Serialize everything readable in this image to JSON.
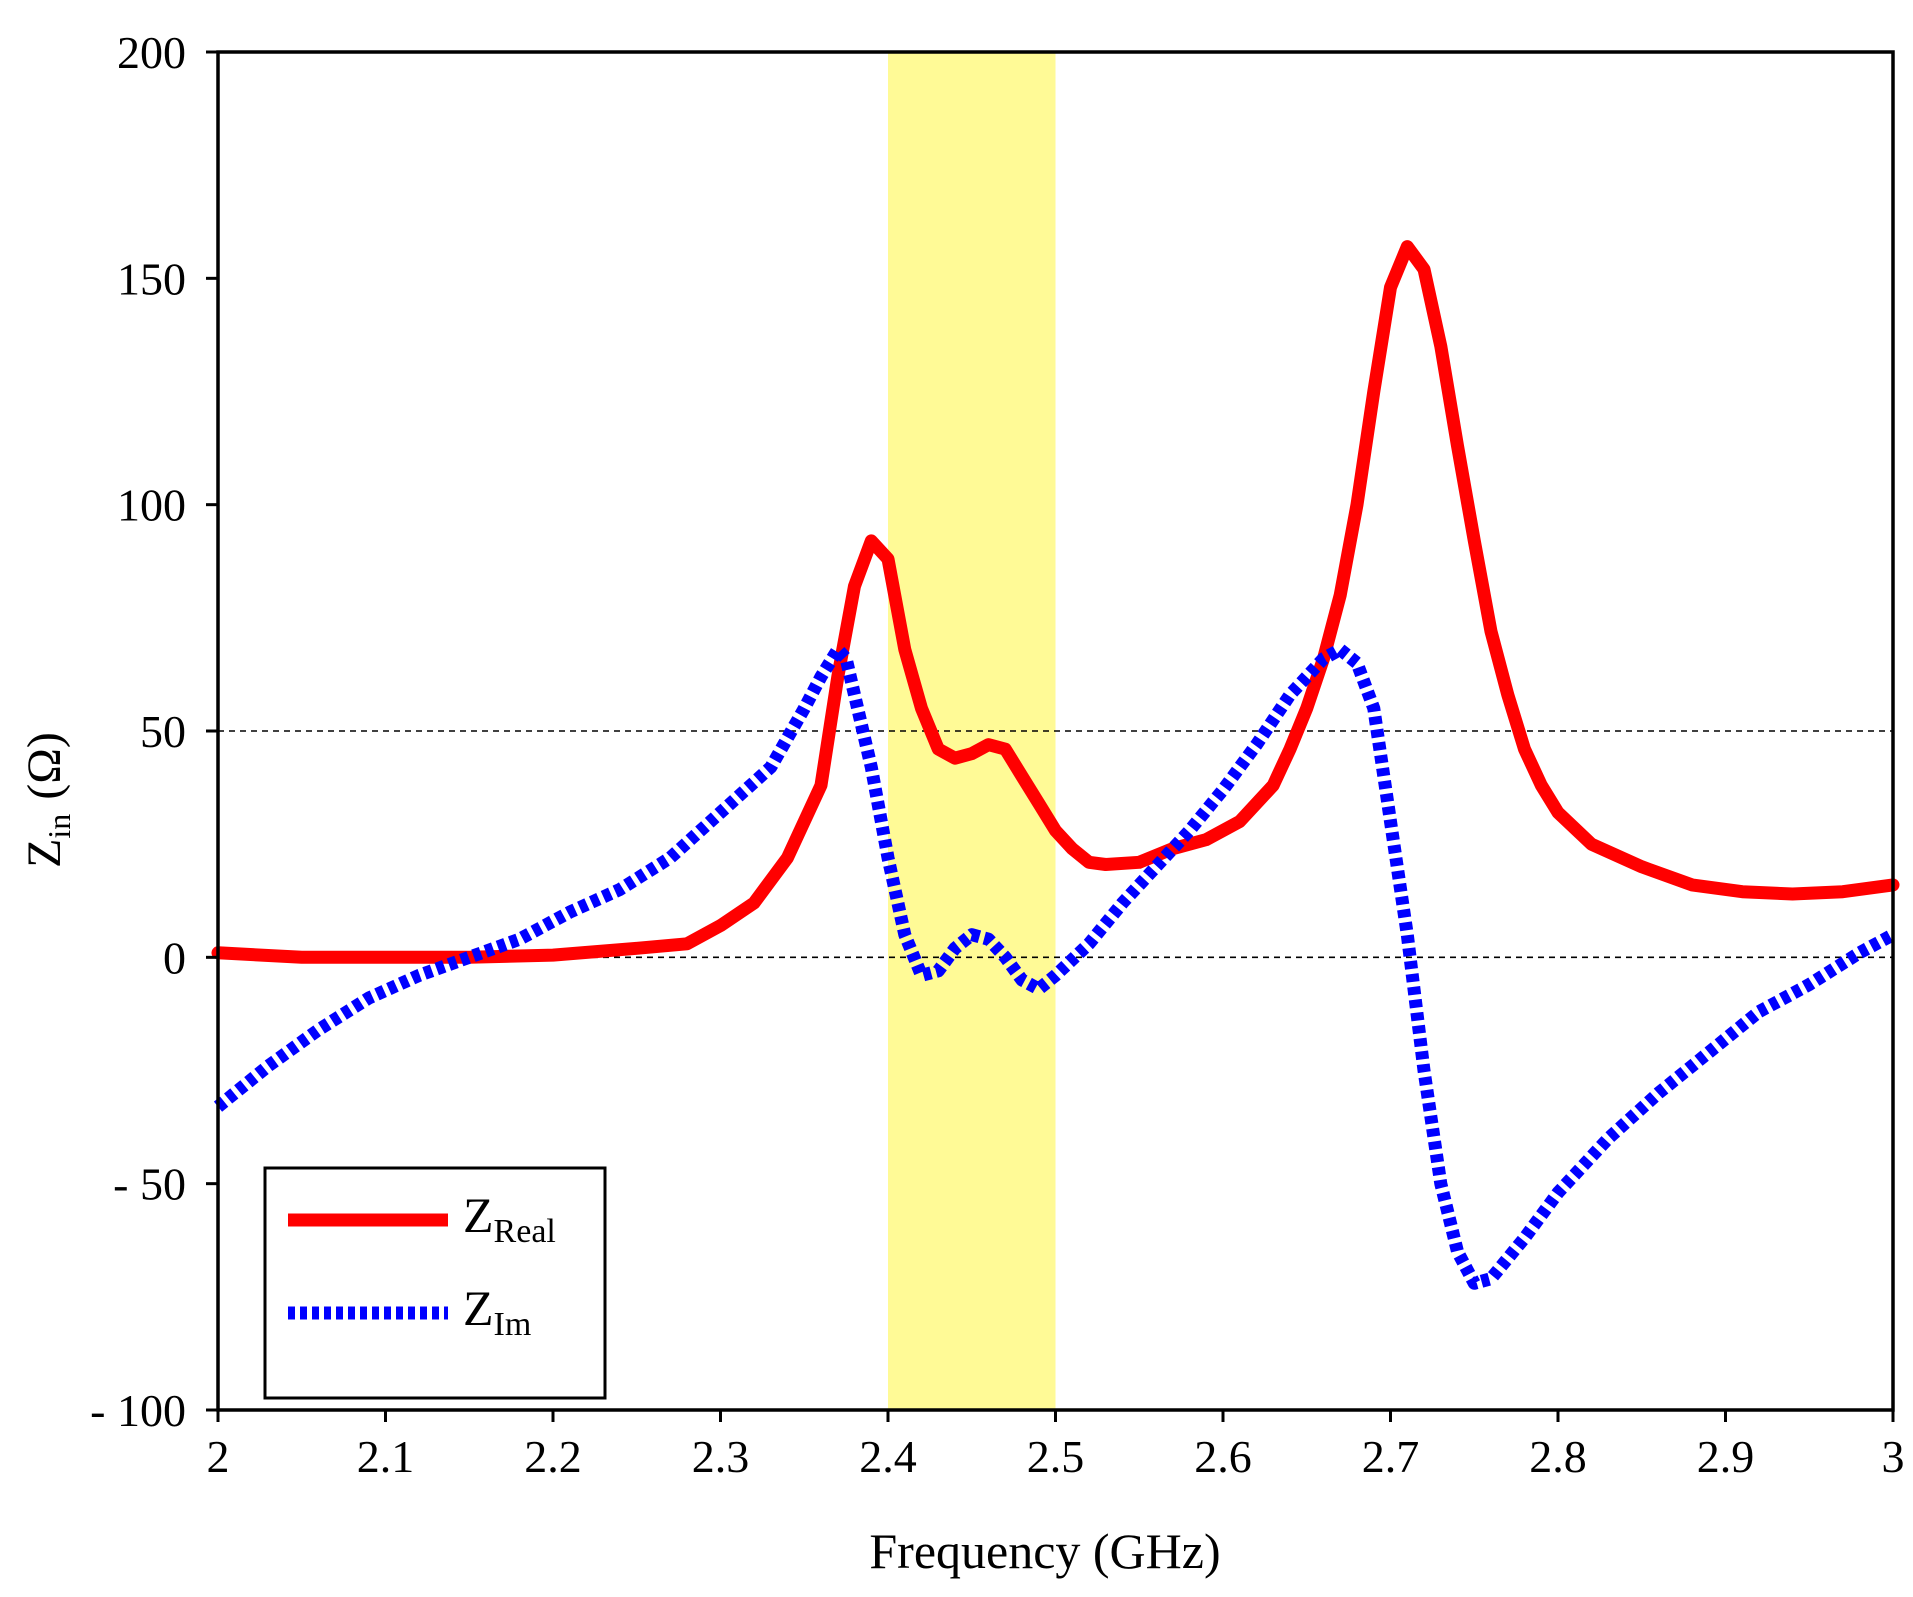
{
  "chart_data": {
    "type": "line",
    "title": "",
    "xlabel": "Frequency (GHz)",
    "ylabel": {
      "main": "Z",
      "sub": "in",
      "unit": "(Ω)"
    },
    "xlim": [
      2,
      3
    ],
    "ylim": [
      -100,
      200
    ],
    "x_ticks": [
      2,
      2.1,
      2.2,
      2.3,
      2.4,
      2.5,
      2.6,
      2.7,
      2.8,
      2.9,
      3
    ],
    "x_tick_labels": [
      "2",
      "2.1",
      "2.2",
      "2.3",
      "2.4",
      "2.5",
      "2.6",
      "2.7",
      "2.8",
      "2.9",
      "3"
    ],
    "y_ticks": [
      -100,
      -50,
      0,
      50,
      100,
      150,
      200
    ],
    "y_tick_labels": [
      "- 100",
      "- 50",
      "0",
      "50",
      "100",
      "150",
      "200"
    ],
    "reference_lines": [
      0,
      50
    ],
    "highlight_band": {
      "x": [
        2.4,
        2.5
      ],
      "color": "#fffa96"
    },
    "legend_position": "bottom-left",
    "series": [
      {
        "name": "Z",
        "name_sub": "Real",
        "style": "solid",
        "color": "#ff0000",
        "points": [
          [
            2.0,
            1
          ],
          [
            2.05,
            0
          ],
          [
            2.1,
            0
          ],
          [
            2.15,
            0
          ],
          [
            2.2,
            0.5
          ],
          [
            2.25,
            2
          ],
          [
            2.28,
            3
          ],
          [
            2.3,
            7
          ],
          [
            2.32,
            12
          ],
          [
            2.34,
            22
          ],
          [
            2.36,
            38
          ],
          [
            2.37,
            62
          ],
          [
            2.38,
            82
          ],
          [
            2.39,
            92
          ],
          [
            2.4,
            88
          ],
          [
            2.41,
            68
          ],
          [
            2.42,
            55
          ],
          [
            2.43,
            46
          ],
          [
            2.44,
            44
          ],
          [
            2.45,
            45
          ],
          [
            2.46,
            47
          ],
          [
            2.47,
            46
          ],
          [
            2.48,
            40
          ],
          [
            2.49,
            34
          ],
          [
            2.5,
            28
          ],
          [
            2.51,
            24
          ],
          [
            2.52,
            21
          ],
          [
            2.53,
            20.5
          ],
          [
            2.55,
            21
          ],
          [
            2.57,
            24
          ],
          [
            2.59,
            26
          ],
          [
            2.61,
            30
          ],
          [
            2.63,
            38
          ],
          [
            2.64,
            46
          ],
          [
            2.65,
            55
          ],
          [
            2.66,
            66
          ],
          [
            2.67,
            80
          ],
          [
            2.68,
            100
          ],
          [
            2.69,
            125
          ],
          [
            2.7,
            148
          ],
          [
            2.71,
            157
          ],
          [
            2.72,
            152
          ],
          [
            2.73,
            135
          ],
          [
            2.74,
            113
          ],
          [
            2.75,
            92
          ],
          [
            2.76,
            72
          ],
          [
            2.77,
            58
          ],
          [
            2.78,
            46
          ],
          [
            2.79,
            38
          ],
          [
            2.8,
            32
          ],
          [
            2.82,
            25
          ],
          [
            2.85,
            20
          ],
          [
            2.88,
            16
          ],
          [
            2.91,
            14.5
          ],
          [
            2.94,
            14
          ],
          [
            2.97,
            14.5
          ],
          [
            3.0,
            16
          ]
        ]
      },
      {
        "name": "Z",
        "name_sub": "Im",
        "style": "dotted",
        "color": "#0000ff",
        "points": [
          [
            2.0,
            -33
          ],
          [
            2.03,
            -24
          ],
          [
            2.06,
            -16
          ],
          [
            2.09,
            -9
          ],
          [
            2.12,
            -4
          ],
          [
            2.15,
            0
          ],
          [
            2.18,
            4
          ],
          [
            2.21,
            10
          ],
          [
            2.24,
            15
          ],
          [
            2.27,
            22
          ],
          [
            2.3,
            32
          ],
          [
            2.33,
            42
          ],
          [
            2.35,
            55
          ],
          [
            2.36,
            62
          ],
          [
            2.37,
            68
          ],
          [
            2.375,
            66
          ],
          [
            2.38,
            58
          ],
          [
            2.39,
            42
          ],
          [
            2.4,
            22
          ],
          [
            2.41,
            5
          ],
          [
            2.42,
            -4
          ],
          [
            2.43,
            -3
          ],
          [
            2.44,
            2
          ],
          [
            2.45,
            5
          ],
          [
            2.46,
            4
          ],
          [
            2.47,
            0
          ],
          [
            2.48,
            -5
          ],
          [
            2.49,
            -7
          ],
          [
            2.5,
            -4
          ],
          [
            2.52,
            3
          ],
          [
            2.54,
            12
          ],
          [
            2.56,
            20
          ],
          [
            2.58,
            28
          ],
          [
            2.6,
            37
          ],
          [
            2.62,
            47
          ],
          [
            2.64,
            58
          ],
          [
            2.66,
            66
          ],
          [
            2.67,
            68
          ],
          [
            2.68,
            65
          ],
          [
            2.69,
            55
          ],
          [
            2.7,
            30
          ],
          [
            2.71,
            5
          ],
          [
            2.72,
            -25
          ],
          [
            2.73,
            -50
          ],
          [
            2.74,
            -65
          ],
          [
            2.75,
            -72
          ],
          [
            2.76,
            -71
          ],
          [
            2.78,
            -62
          ],
          [
            2.8,
            -52
          ],
          [
            2.83,
            -40
          ],
          [
            2.86,
            -30
          ],
          [
            2.89,
            -21
          ],
          [
            2.92,
            -12
          ],
          [
            2.95,
            -6
          ],
          [
            2.98,
            1
          ],
          [
            3.0,
            5
          ]
        ]
      }
    ]
  }
}
